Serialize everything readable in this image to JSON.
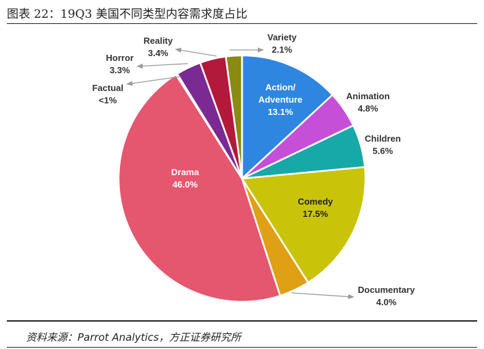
{
  "title": "图表 22：19Q3 美国不同类型内容需求度占比",
  "source": "资料来源：Parrot Analytics，方正证券研究所",
  "chart_data": {
    "type": "pie",
    "categories": [
      "Action/ Adventure",
      "Animation",
      "Children",
      "Comedy",
      "Documentary",
      "Drama",
      "Factual",
      "Horror",
      "Reality",
      "Variety"
    ],
    "values": [
      13.1,
      4.8,
      5.6,
      17.5,
      4.0,
      46.0,
      0.2,
      3.3,
      3.4,
      2.1
    ],
    "value_labels": [
      "13.1%",
      "4.8%",
      "5.6%",
      "17.5%",
      "4.0%",
      "46.0%",
      "<1%",
      "3.3%",
      "3.4%",
      "2.1%"
    ],
    "colors": [
      "#2f86e0",
      "#c64fd8",
      "#17a9a8",
      "#c9c40a",
      "#e0a015",
      "#e5566f",
      "#dcdce8",
      "#7a2a92",
      "#b3193a",
      "#8b8a12"
    ]
  }
}
